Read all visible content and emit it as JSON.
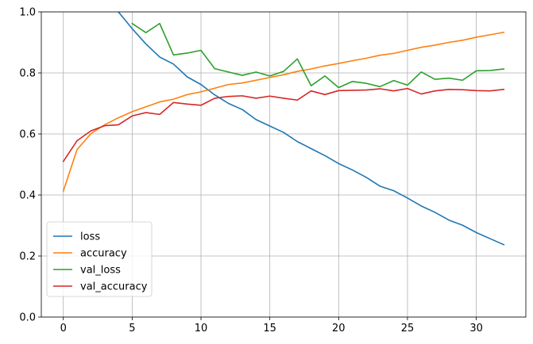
{
  "chart_data": {
    "type": "line",
    "title": "",
    "xlabel": "",
    "ylabel": "",
    "xlim": [
      -1.6,
      33.6
    ],
    "ylim": [
      0,
      1
    ],
    "xticks": [
      "0",
      "5",
      "10",
      "15",
      "20",
      "25",
      "30"
    ],
    "yticks": [
      "0.0",
      "0.2",
      "0.4",
      "0.6",
      "0.8",
      "1.0"
    ],
    "grid": true,
    "legend": "lower-left",
    "x": [
      0,
      1,
      2,
      3,
      4,
      5,
      6,
      7,
      8,
      9,
      10,
      11,
      12,
      13,
      14,
      15,
      16,
      17,
      18,
      19,
      20,
      21,
      22,
      23,
      24,
      25,
      26,
      27,
      28,
      29,
      30,
      31,
      32
    ],
    "series": [
      {
        "name": "loss",
        "color": "#1f77b4",
        "values": [
          null,
          null,
          null,
          null,
          1.0,
          0.945,
          0.895,
          0.852,
          0.829,
          0.787,
          0.762,
          0.728,
          0.7,
          0.68,
          0.647,
          0.626,
          0.605,
          0.575,
          0.552,
          0.529,
          0.503,
          0.482,
          0.458,
          0.429,
          0.414,
          0.39,
          0.364,
          0.343,
          0.318,
          0.301,
          0.277,
          0.257,
          0.237
        ]
      },
      {
        "name": "accuracy",
        "color": "#ff7f0e",
        "values": [
          0.413,
          0.549,
          0.601,
          0.63,
          0.653,
          0.673,
          0.689,
          0.705,
          0.714,
          0.729,
          0.738,
          0.75,
          0.762,
          0.767,
          0.776,
          0.785,
          0.794,
          0.805,
          0.813,
          0.823,
          0.831,
          0.84,
          0.848,
          0.858,
          0.864,
          0.874,
          0.884,
          0.891,
          0.9,
          0.907,
          0.917,
          0.925,
          0.933
        ]
      },
      {
        "name": "val_loss",
        "color": "#2ca02c",
        "values": [
          null,
          null,
          null,
          null,
          null,
          0.962,
          0.932,
          0.962,
          0.859,
          0.865,
          0.874,
          0.814,
          0.803,
          0.792,
          0.803,
          0.79,
          0.805,
          0.846,
          0.758,
          0.79,
          0.752,
          0.772,
          0.766,
          0.755,
          0.775,
          0.76,
          0.803,
          0.779,
          0.783,
          0.776,
          0.807,
          0.808,
          0.813
        ]
      },
      {
        "name": "val_accuracy",
        "color": "#d62728",
        "values": [
          0.51,
          0.578,
          0.61,
          0.627,
          0.63,
          0.659,
          0.67,
          0.664,
          0.703,
          0.698,
          0.694,
          0.717,
          0.723,
          0.725,
          0.717,
          0.724,
          0.717,
          0.711,
          0.741,
          0.729,
          0.742,
          0.743,
          0.744,
          0.748,
          0.741,
          0.749,
          0.731,
          0.741,
          0.746,
          0.745,
          0.742,
          0.741,
          0.746
        ]
      }
    ]
  }
}
